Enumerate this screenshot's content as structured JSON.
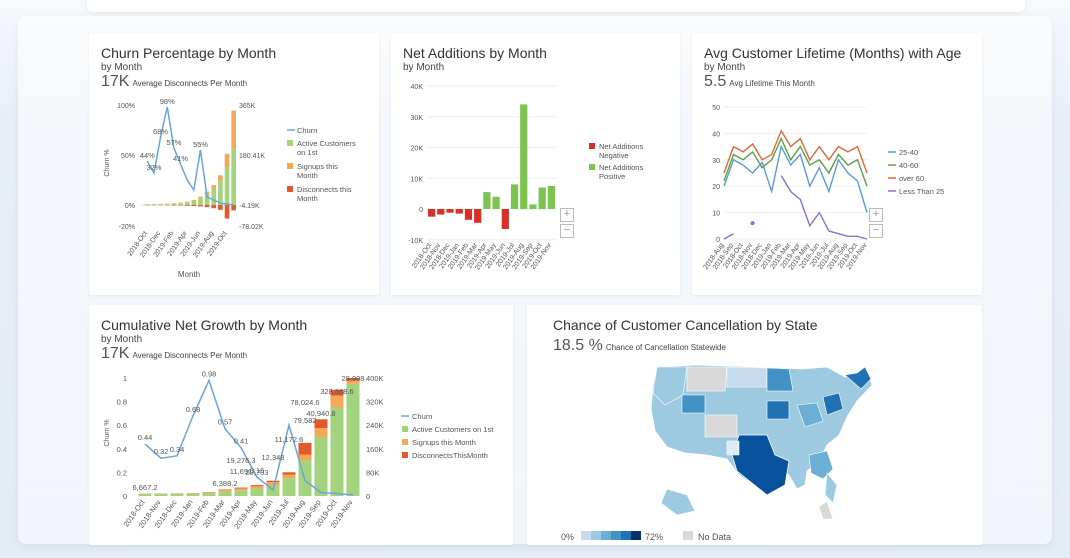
{
  "cards": {
    "churn": {
      "title": "Churn Percentage by Month",
      "subtitle": "by Month",
      "kpi_value": "17K",
      "kpi_label": "Average Disconnects Per Month",
      "y_ticks": [
        "100%",
        "50%",
        "0%",
        "-20%"
      ],
      "y2_ticks": [
        "365K",
        "180.41K",
        "-4.19K",
        "-78.02K"
      ],
      "ylabel": "Churn %",
      "xlabel": "Month",
      "legend": [
        "Churn",
        "Active Customers on 1st",
        "Signups this Month",
        "Disconnects this Month"
      ]
    },
    "net_additions": {
      "title": "Net Additions by Month",
      "subtitle": "by Month",
      "y_ticks": [
        "40K",
        "30K",
        "20K",
        "10K",
        "0",
        "-10K"
      ],
      "legend": [
        "Net Additions Negative",
        "Net Additions Positive"
      ]
    },
    "lifetime": {
      "title": "Avg Customer Lifetime (Months) with Age",
      "subtitle": "by Month",
      "kpi_value": "5.5",
      "kpi_label": "Avg Lifetime This Month",
      "y_ticks": [
        "50",
        "40",
        "30",
        "20",
        "10",
        "0"
      ],
      "legend": [
        "25-40",
        "40-60",
        "over 60",
        "Less Than 25"
      ]
    },
    "growth": {
      "title": "Cumulative Net Growth by Month",
      "subtitle": "by Month",
      "kpi_value": "17K",
      "kpi_label": "Average Disconnects Per Month",
      "y_ticks": [
        "1",
        "0.8",
        "0.6",
        "0.4",
        "0.2",
        "0"
      ],
      "y2_ticks": [
        "400K",
        "320K",
        "240K",
        "160K",
        "80K",
        "0"
      ],
      "ylabel": "Churn %",
      "xlabel": "Month",
      "legend": [
        "Churn",
        "Active Customers on 1st",
        "Signups this Month",
        "DisconnectsThisMonth"
      ]
    },
    "map": {
      "title": "Chance of Customer Cancellation by State",
      "kpi_value": "18.5 %",
      "kpi_label": "Chance of Cancellation Statewide",
      "scale_min": "0%",
      "scale_max": "72%",
      "no_data": "No Data"
    }
  },
  "chart_data": [
    {
      "type": "bar",
      "title": "Churn Percentage by Month",
      "categories": [
        "2018-Oct",
        "2018-Nov",
        "2018-Dec",
        "2019-Jan",
        "2019-Feb",
        "2019-Mar",
        "2019-Apr",
        "2019-May",
        "2019-Jun",
        "2019-Jul",
        "2019-Aug",
        "2019-Sep",
        "2019-Oct",
        "2019-Nov"
      ],
      "series": [
        {
          "name": "Churn",
          "kind": "line",
          "values": [
            44,
            32,
            68,
            98,
            57,
            41,
            25,
            15,
            55,
            8,
            5,
            2,
            1,
            0
          ]
        },
        {
          "name": "Active Customers on 1st",
          "kind": "bar",
          "values": [
            2,
            3,
            3,
            4,
            5,
            7,
            10,
            15,
            25,
            40,
            60,
            90,
            140,
            210
          ]
        },
        {
          "name": "Signups this Month",
          "kind": "bar",
          "values": [
            1,
            1,
            1,
            1,
            2,
            2,
            3,
            4,
            6,
            9,
            14,
            20,
            50,
            140
          ]
        },
        {
          "name": "Disconnects this Month",
          "kind": "bar",
          "values": [
            -1,
            -1,
            -1,
            -1,
            -2,
            -2,
            -3,
            -4,
            -5,
            -8,
            -12,
            -18,
            -50,
            -20
          ]
        }
      ],
      "labels_shown": [
        "44%",
        "32%",
        "68%",
        "98%",
        "57%",
        "41%",
        "55%"
      ],
      "xlabel": "Month",
      "ylabel": "Churn %"
    },
    {
      "type": "bar",
      "title": "Net Additions by Month",
      "categories": [
        "2018-Oct",
        "2018-Nov",
        "2018-Dec",
        "2019-Jan",
        "2019-Feb",
        "2019-Mar",
        "2019-Apr",
        "2019-May",
        "2019-Jun",
        "2019-Jul",
        "2019-Aug",
        "2019-Sep",
        "2019-Oct",
        "2019-Nov"
      ],
      "values": [
        -2500,
        -1800,
        -1200,
        -1500,
        -3500,
        -4500,
        5500,
        4000,
        -6500,
        8000,
        34000,
        1500,
        7000,
        7500
      ],
      "ylim": [
        -10000,
        40000
      ]
    },
    {
      "type": "line",
      "title": "Avg Customer Lifetime (Months) with Age",
      "x": [
        "2018-Aug",
        "2018-Sep",
        "2018-Oct",
        "2018-Nov",
        "2018-Dec",
        "2019-Jan",
        "2019-Feb",
        "2019-Mar",
        "2019-Apr",
        "2019-May",
        "2019-Jun",
        "2019-Jul",
        "2019-Aug",
        "2019-Sep",
        "2019-Oct",
        "2019-Nov"
      ],
      "series": [
        {
          "name": "25-40",
          "values": [
            20,
            30,
            28,
            25,
            29,
            18,
            35,
            28,
            32,
            20,
            27,
            18,
            30,
            25,
            22,
            10
          ]
        },
        {
          "name": "40-60",
          "values": [
            22,
            32,
            30,
            33,
            27,
            30,
            38,
            30,
            35,
            28,
            30,
            25,
            32,
            28,
            30,
            20
          ]
        },
        {
          "name": "over 60",
          "values": [
            25,
            35,
            33,
            36,
            30,
            32,
            41,
            35,
            38,
            30,
            35,
            30,
            35,
            33,
            35,
            25
          ]
        },
        {
          "name": "Less Than 25",
          "values": [
            0,
            2,
            null,
            6,
            null,
            null,
            24,
            18,
            15,
            5,
            10,
            3,
            2,
            1,
            1,
            0
          ]
        }
      ],
      "ylim": [
        0,
        50
      ]
    },
    {
      "type": "bar",
      "title": "Cumulative Net Growth by Month",
      "categories": [
        "2018-Oct",
        "2018-Nov",
        "2018-Dec",
        "2019-Jan",
        "2019-Feb",
        "2019-Mar",
        "2019-Apr",
        "2019-May",
        "2019-Jun",
        "2019-Jul",
        "2019-Aug",
        "2019-Sep",
        "2019-Oct",
        "2019-Nov"
      ],
      "series": [
        {
          "name": "Churn",
          "kind": "line",
          "values": [
            0.44,
            0.32,
            0.34,
            0.68,
            0.98,
            0.57,
            0.41,
            0.16,
            0.05,
            0.6,
            0.13,
            0.03,
            0.02,
            0.01
          ]
        },
        {
          "name": "Active Customers on 1st",
          "kind": "bar",
          "values": [
            6667.2,
            7000,
            7500,
            8000,
            10000,
            15000,
            19276.3,
            25000,
            35000,
            60000,
            120000,
            200000,
            300000,
            380000
          ]
        },
        {
          "name": "Signups this Month",
          "kind": "bar",
          "values": [
            1000,
            1000,
            1000,
            1200,
            2000,
            5000,
            6388.2,
            8000,
            11691,
            12348,
            20000,
            30000,
            40000,
            12000
          ]
        },
        {
          "name": "DisconnectsThisMonth",
          "kind": "bar",
          "values": [
            500,
            500,
            600,
            700,
            1000,
            2000,
            3000,
            4000,
            5000,
            8000,
            40000,
            30000,
            20000,
            8000
          ]
        }
      ],
      "labels_shown": [
        "6,667.2",
        "6,388.2",
        "19,276.3",
        "11,691",
        "20,703",
        "12,348",
        "11,172.6",
        "78,024.6",
        "79,582",
        "40,940.8",
        "328,368.6",
        "28,908"
      ],
      "xlabel": "Month",
      "ylabel": "Churn %"
    }
  ],
  "map_colors": {
    "low": "#c6dbef",
    "mid": "#6baed6",
    "high": "#2171b5",
    "max": "#08306b",
    "nodata": "#d9d9d9"
  }
}
